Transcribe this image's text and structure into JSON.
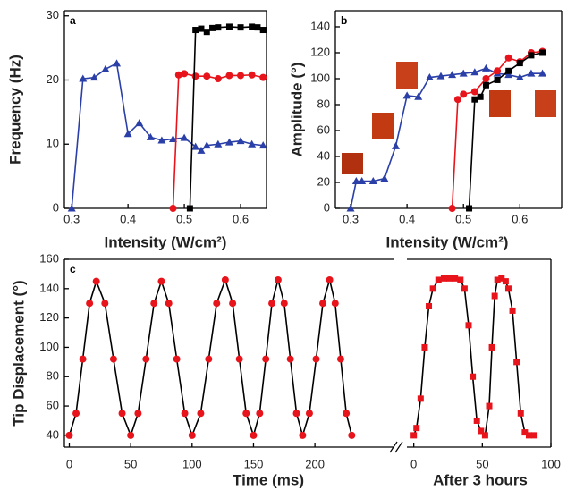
{
  "chart_data": [
    {
      "type": "line",
      "label": "a",
      "ylabel": "Frequency (Hz)",
      "xlabel": "Intensity (W/cm²)",
      "xlim": [
        0.287,
        0.646
      ],
      "xticks": [
        0.3,
        0.4,
        0.5,
        0.6
      ],
      "ylim": [
        0,
        30.8
      ],
      "yticks": [
        0,
        10,
        20,
        30
      ],
      "series": [
        {
          "color": "#2b3fa8",
          "marker": "triangle",
          "x": [
            0.3,
            0.32,
            0.34,
            0.36,
            0.38,
            0.4,
            0.42,
            0.44,
            0.46,
            0.48,
            0.5,
            0.52,
            0.53,
            0.54,
            0.56,
            0.58,
            0.6,
            0.62,
            0.64
          ],
          "values": [
            0,
            20.2,
            20.4,
            21.7,
            22.6,
            11.6,
            13.3,
            11.1,
            10.6,
            10.8,
            11.0,
            9.6,
            9.0,
            9.8,
            10.0,
            10.3,
            10.5,
            10.0,
            9.8
          ]
        },
        {
          "color": "#e8141b",
          "marker": "circle",
          "x": [
            0.48,
            0.49,
            0.5,
            0.52,
            0.54,
            0.56,
            0.58,
            0.6,
            0.62,
            0.64
          ],
          "values": [
            0,
            20.8,
            21.0,
            20.6,
            20.6,
            20.2,
            20.7,
            20.7,
            20.8,
            20.4
          ]
        },
        {
          "color": "#000000",
          "marker": "square",
          "x": [
            0.51,
            0.52,
            0.53,
            0.54,
            0.55,
            0.56,
            0.58,
            0.6,
            0.62,
            0.63,
            0.64
          ],
          "values": [
            0,
            27.8,
            28.0,
            27.5,
            28.1,
            28.2,
            28.3,
            28.2,
            28.3,
            28.2,
            27.8
          ]
        }
      ]
    },
    {
      "type": "line",
      "label": "b",
      "ylabel": "Amplitude (°)",
      "xlabel": "Intensity (W/cm²)",
      "xlim": [
        0.273,
        0.674
      ],
      "xticks": [
        0.3,
        0.4,
        0.5,
        0.6
      ],
      "ylim": [
        0,
        152.4
      ],
      "yticks": [
        0,
        20,
        40,
        60,
        80,
        100,
        120,
        140
      ],
      "series": [
        {
          "color": "#2b3fa8",
          "marker": "triangle",
          "x": [
            0.3,
            0.31,
            0.32,
            0.34,
            0.36,
            0.38,
            0.4,
            0.42,
            0.44,
            0.46,
            0.48,
            0.5,
            0.52,
            0.54,
            0.56,
            0.58,
            0.6,
            0.62,
            0.64
          ],
          "values": [
            0,
            21,
            21,
            21,
            23,
            48,
            87,
            86,
            101,
            102,
            103,
            104,
            105,
            108,
            104,
            103,
            101,
            104,
            104
          ]
        },
        {
          "color": "#e8141b",
          "marker": "circle",
          "x": [
            0.48,
            0.49,
            0.5,
            0.52,
            0.54,
            0.56,
            0.58,
            0.6,
            0.62,
            0.64
          ],
          "values": [
            0,
            84,
            88,
            90,
            100,
            106,
            116,
            113,
            120,
            121
          ]
        },
        {
          "color": "#000000",
          "marker": "square",
          "x": [
            0.51,
            0.52,
            0.53,
            0.54,
            0.56,
            0.58,
            0.6,
            0.62,
            0.64
          ],
          "values": [
            0,
            84,
            86,
            95,
            99,
            106,
            112,
            118,
            120
          ]
        }
      ]
    },
    {
      "type": "line",
      "label": "c",
      "ylabel": "Tip Displacement (°)",
      "xlabel": "Time (ms)",
      "xlim": [
        -4,
        264
      ],
      "xticks": [
        0,
        50,
        100,
        150,
        200
      ],
      "ylim": [
        32,
        160
      ],
      "yticks": [
        40,
        60,
        80,
        100,
        120,
        140,
        160
      ],
      "series": [
        {
          "color": "#e8141b",
          "marker": "circle",
          "x": [
            0,
            5.5,
            11,
            16.5,
            22,
            29,
            36,
            43,
            50,
            56,
            62.5,
            69,
            75,
            81,
            87.5,
            94,
            100,
            107,
            113.5,
            120,
            127,
            133,
            138.5,
            144,
            150,
            155,
            160,
            165,
            170,
            175,
            180,
            185,
            190,
            195.5,
            201,
            206.5,
            212,
            216.5,
            221,
            225.5,
            230
          ],
          "values": [
            40,
            55,
            92,
            130,
            145,
            130,
            92,
            55,
            40,
            55,
            92,
            130,
            145,
            130,
            92,
            55,
            40,
            55,
            92,
            130,
            146,
            130,
            92,
            55,
            40,
            55,
            92,
            130,
            146,
            130,
            92,
            55,
            40,
            55,
            92,
            130,
            146,
            130,
            92,
            55,
            40
          ]
        }
      ]
    },
    {
      "type": "line",
      "xlabel": "After 3 hours",
      "xlim": [
        -5,
        100
      ],
      "xticks": [
        0,
        50,
        100
      ],
      "ylim": [
        32,
        160
      ],
      "series": [
        {
          "color": "#e8141b",
          "marker": "square",
          "x": [
            0,
            2,
            5,
            8,
            11,
            14,
            18,
            22,
            26,
            30,
            34,
            37,
            40,
            43,
            46,
            49,
            52,
            55,
            57,
            59,
            61,
            64,
            67,
            69,
            72,
            75,
            78,
            81,
            84,
            88
          ],
          "values": [
            40,
            45,
            65,
            100,
            128,
            140,
            146,
            147,
            147,
            147,
            146,
            140,
            115,
            80,
            50,
            43,
            40,
            60,
            100,
            135,
            146,
            147,
            145,
            140,
            125,
            90,
            55,
            42,
            40,
            40
          ]
        }
      ]
    }
  ]
}
